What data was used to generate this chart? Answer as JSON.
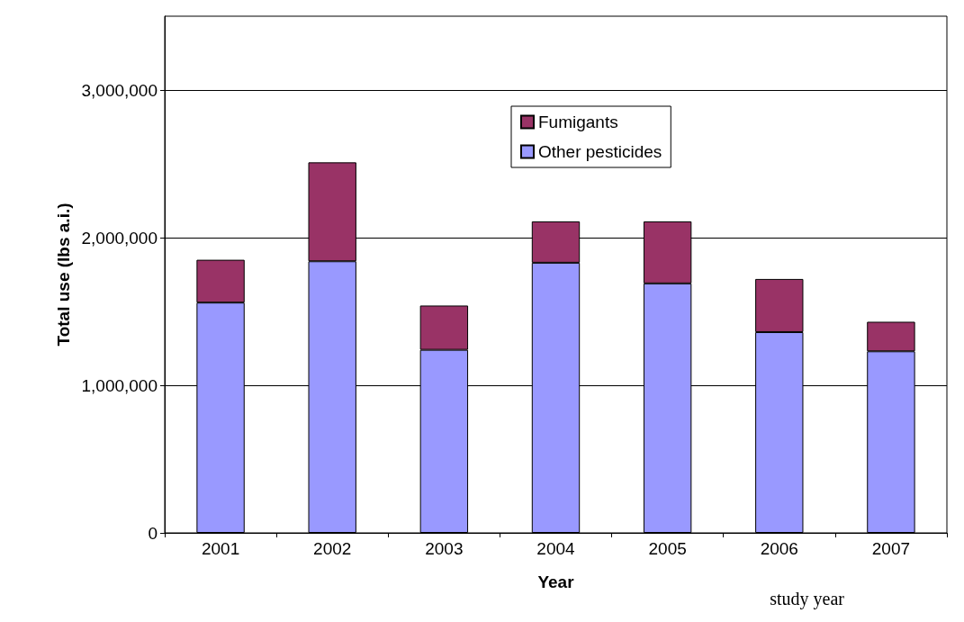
{
  "chart_data": {
    "type": "bar",
    "stacked": true,
    "categories": [
      "2001",
      "2002",
      "2003",
      "2004",
      "2005",
      "2006",
      "2007"
    ],
    "series": [
      {
        "name": "Other pesticides",
        "color": "#9999ff",
        "values": [
          1560000,
          1840000,
          1240000,
          1830000,
          1690000,
          1360000,
          1230000
        ]
      },
      {
        "name": "Fumigants",
        "color": "#993366",
        "values": [
          290000,
          670000,
          300000,
          280000,
          420000,
          360000,
          200000
        ]
      }
    ],
    "xlabel": "Year",
    "ylabel": "Total use (lbs a.i.)",
    "ylim": [
      0,
      3500000
    ],
    "yticks": [
      0,
      {
        "value": 1000000,
        "label": "1,000,000"
      },
      {
        "value": 2000000,
        "label": "2,000,000"
      },
      {
        "value": 3000000,
        "label": "3,000,000"
      }
    ],
    "grid": "y",
    "legend": "top",
    "annotations": [
      "study year"
    ]
  }
}
